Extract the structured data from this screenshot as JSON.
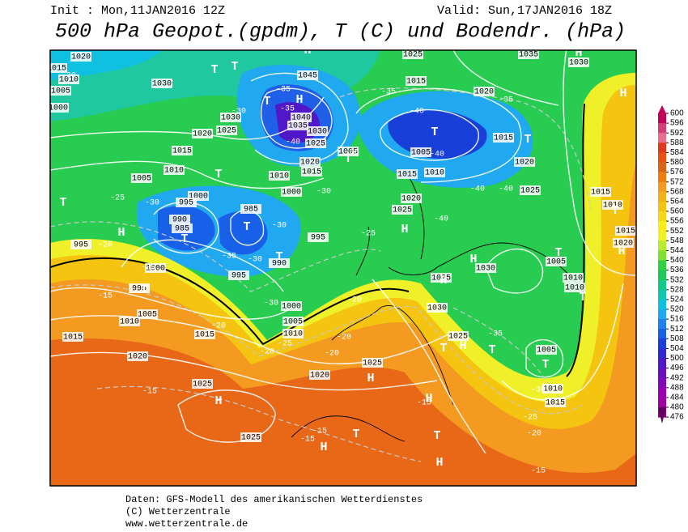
{
  "header": {
    "init": "Init : Mon,11JAN2016 12Z",
    "valid": "Valid: Sun,17JAN2016 18Z",
    "title": "500 hPa Geopot.(gpdm), T (C) und Bodendr. (hPa)"
  },
  "legend": {
    "ticks": [
      600,
      596,
      592,
      588,
      584,
      580,
      576,
      572,
      568,
      564,
      560,
      556,
      552,
      548,
      544,
      540,
      536,
      532,
      528,
      524,
      520,
      516,
      512,
      508,
      504,
      500,
      496,
      492,
      488,
      484,
      480,
      476
    ],
    "colors": [
      "#c2005a",
      "#d63c78",
      "#e8708c",
      "#e0381c",
      "#e85014",
      "#d86418",
      "#f07c10",
      "#f49a20",
      "#f4b018",
      "#f4c410",
      "#f4d818",
      "#f8ec18",
      "#f0f028",
      "#b8ec30",
      "#80e030",
      "#30d040",
      "#20c858",
      "#10c888",
      "#10c8b0",
      "#10c0e0",
      "#20a8f0",
      "#2080f0",
      "#1860e8",
      "#1840d8",
      "#3028d0",
      "#5018c8",
      "#6810c0",
      "#8008b8",
      "#9800b0",
      "#a000a0",
      "#900080",
      "#600060"
    ]
  },
  "map": {
    "labels": [
      "1020",
      "1015",
      "1010",
      "1005",
      "1000",
      "1030",
      "1030",
      "1025",
      "1020",
      "1015",
      "1010",
      "1005",
      "1000",
      "995",
      "990",
      "985",
      "985",
      "995",
      "995",
      "990",
      "1000",
      "995",
      "1005",
      "1010",
      "1015",
      "1015",
      "1020",
      "1025",
      "1025",
      "1020",
      "1025",
      "1005",
      "1010",
      "1000",
      "995",
      "1045",
      "1040",
      "1035",
      "1030",
      "1025",
      "1020",
      "1015",
      "1010",
      "1005",
      "1000",
      "1025",
      "1015",
      "1005",
      "1010",
      "1015",
      "1020",
      "1025",
      "1035",
      "1030",
      "1020",
      "1015",
      "1020",
      "1025",
      "1030",
      "1025",
      "1030",
      "1025",
      "1005",
      "1010",
      "1010",
      "1005",
      "1010",
      "1015",
      "1015",
      "1010",
      "1015",
      "1020",
      "T",
      "H",
      "T",
      "H",
      "T",
      "T",
      "T",
      "H",
      "T",
      "T",
      "T",
      "T",
      "T",
      "T",
      "H",
      "T",
      "H",
      "H",
      "H",
      "T",
      "T",
      "H",
      "H",
      "H",
      "T",
      "T",
      "T",
      "H",
      "H",
      "H",
      "T",
      "T",
      "T",
      "H",
      "H",
      "-30",
      "-30",
      "-35",
      "-35",
      "-40",
      "-35",
      "-40",
      "-35",
      "-40",
      "-40",
      "-40",
      "-35",
      "-30",
      "-25",
      "-30",
      "-35",
      "-30",
      "-30",
      "-25",
      "-20",
      "-25",
      "-15",
      "-20",
      "-30",
      "-20",
      "-25",
      "-20",
      "-20",
      "-20",
      "-15",
      "-15",
      "-15",
      "-15",
      "-20",
      "-25",
      "-15",
      "-30",
      "-35",
      "-40"
    ]
  },
  "footer": {
    "lines": [
      "Daten: GFS-Modell des amerikanischen Wetterdienstes",
      "(C) Wetterzentrale",
      "www.wetterzentrale.de"
    ]
  }
}
